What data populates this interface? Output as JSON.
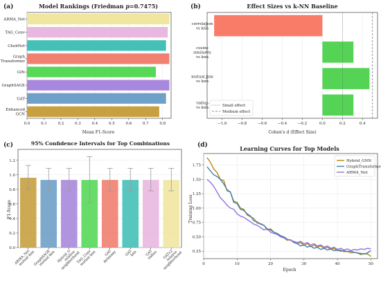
{
  "figure": {
    "panels": [
      {
        "id": "a",
        "label": "(a)",
        "title": "Model Rankings (Friedman p=0.7475)"
      },
      {
        "id": "b",
        "label": "(b)",
        "title": "Effect Sizes vs k-NN Baseline"
      },
      {
        "id": "c",
        "label": "(c)",
        "title": "95% Confidence Intervals for Top Combinations"
      },
      {
        "id": "d",
        "label": "(d)",
        "title": "Learning Curves for Top Models"
      }
    ]
  },
  "chart_data": [
    {
      "id": "a",
      "type": "bar",
      "orientation": "horizontal",
      "title": "Model Rankings (Friedman p=0.7475)",
      "xlabel": "Mean F1-Score",
      "ylabel": "",
      "xlim": [
        0,
        0.85
      ],
      "xticks": [
        0.0,
        0.1,
        0.2,
        0.3,
        0.4,
        0.5,
        0.6,
        0.7,
        0.8
      ],
      "categories": [
        "ARMA_Net",
        "TAG_Conv",
        "ChebNet",
        "Graph\nTransformer",
        "GIN",
        "GraphSAGE",
        "GAT",
        "Enhanced\nGCN"
      ],
      "values": [
        0.84,
        0.83,
        0.82,
        0.84,
        0.76,
        0.84,
        0.82,
        0.78
      ],
      "colors": [
        "#f0e6a0",
        "#e8b8e0",
        "#45c0b8",
        "#f08070",
        "#58d858",
        "#a888dc",
        "#6fa0c8",
        "#c8a040"
      ]
    },
    {
      "id": "b",
      "type": "bar",
      "orientation": "horizontal",
      "title": "Effect Sizes vs k-NN Baseline",
      "xlabel": "Cohen's d (Effect Size)",
      "ylabel": "",
      "xlim": [
        -1.15,
        0.55
      ],
      "xticks": [
        -1.0,
        -0.8,
        -0.6,
        -0.4,
        -0.2,
        0.0,
        0.2,
        0.4
      ],
      "categories": [
        "correlation\nvs knn",
        "cosine\nsimilarity\nvs knn",
        "mutual knn\nvs knn",
        "radius\nvs knn"
      ],
      "values": [
        -1.08,
        0.31,
        0.47,
        0.31
      ],
      "colors": [
        "#f97c68",
        "#55d355",
        "#55d355",
        "#55d355"
      ],
      "reference_lines": [
        {
          "name": "Small effect",
          "x": 0.2,
          "style": "dotted"
        },
        {
          "name": "Medium effect",
          "x": 0.5,
          "style": "dashed"
        }
      ],
      "legend": "lower-left"
    },
    {
      "id": "c",
      "type": "bar",
      "title": "95% Confidence Intervals for Top Combinations",
      "xlabel": "",
      "ylabel": "F1-Score",
      "ylim": [
        0,
        1.35
      ],
      "yticks": [
        0.0,
        0.2,
        0.4,
        0.6,
        0.8,
        1.0,
        1.2
      ],
      "categories": [
        "ARMA_Net\nmutual knn",
        "GraphSAGE\nmutual knn",
        "Hybrid_G\nrelative\nneighborhood",
        "TAG_Conv\nmutual knn",
        "GAT\ndelaunay",
        "GAT\nknn",
        "GAT\nradius",
        "GATv2\nrelative\nneighborhood"
      ],
      "values": [
        0.96,
        0.93,
        0.93,
        0.93,
        0.93,
        0.93,
        0.93,
        0.93
      ],
      "ci_low": [
        0.8,
        0.78,
        0.78,
        0.62,
        0.78,
        0.78,
        0.78,
        0.78
      ],
      "ci_high": [
        1.13,
        1.09,
        1.09,
        1.25,
        1.09,
        1.09,
        1.09,
        1.09
      ],
      "colors": [
        "#c8a040",
        "#6fa0c8",
        "#a888dc",
        "#58d858",
        "#f08070",
        "#45c0b8",
        "#e8b8e0",
        "#f0e6a0"
      ]
    },
    {
      "id": "d",
      "type": "line",
      "title": "Learning Curves for Top Models",
      "xlabel": "Epoch",
      "ylabel": "Training Loss",
      "xlim": [
        0,
        52
      ],
      "ylim": [
        0.12,
        1.95
      ],
      "xticks": [
        0,
        10,
        20,
        30,
        40,
        50
      ],
      "yticks": [
        0.25,
        0.5,
        0.75,
        1.0,
        1.25,
        1.5,
        1.75
      ],
      "x": [
        1,
        2,
        3,
        4,
        5,
        6,
        7,
        8,
        9,
        10,
        11,
        12,
        13,
        14,
        15,
        16,
        17,
        18,
        19,
        20,
        21,
        22,
        23,
        24,
        25,
        26,
        27,
        28,
        29,
        30,
        31,
        32,
        33,
        34,
        35,
        36,
        37,
        38,
        39,
        40,
        41,
        42,
        43,
        44,
        45,
        46,
        47,
        48,
        49,
        50
      ],
      "series": [
        {
          "name": "Hybrid_GNN",
          "color": "#b8860b",
          "values": [
            1.88,
            1.8,
            1.68,
            1.62,
            1.5,
            1.48,
            1.3,
            1.28,
            1.12,
            1.1,
            1.0,
            0.98,
            0.88,
            0.85,
            0.82,
            0.74,
            0.73,
            0.7,
            0.62,
            0.64,
            0.58,
            0.55,
            0.5,
            0.48,
            0.44,
            0.45,
            0.4,
            0.38,
            0.4,
            0.35,
            0.38,
            0.33,
            0.36,
            0.32,
            0.34,
            0.3,
            0.32,
            0.28,
            0.3,
            0.26,
            0.27,
            0.24,
            0.25,
            0.22,
            0.23,
            0.22,
            0.19,
            0.21,
            0.2,
            0.16
          ]
        },
        {
          "name": "GraphTransformer",
          "color": "#3a7fb5",
          "values": [
            1.72,
            1.65,
            1.58,
            1.55,
            1.5,
            1.42,
            1.32,
            1.28,
            1.1,
            1.08,
            0.98,
            0.96,
            0.9,
            0.86,
            0.78,
            0.76,
            0.72,
            0.7,
            0.64,
            0.62,
            0.58,
            0.56,
            0.52,
            0.5,
            0.46,
            0.44,
            0.4,
            0.38,
            0.34,
            0.36,
            0.32,
            0.34,
            0.3,
            0.32,
            0.28,
            0.3,
            0.27,
            0.29,
            0.26,
            0.27,
            0.25,
            0.26,
            0.24,
            0.25,
            0.23,
            0.22,
            0.21,
            0.2,
            0.22,
            0.26
          ]
        },
        {
          "name": "ARMA_Net",
          "color": "#9370db",
          "values": [
            1.5,
            1.45,
            1.38,
            1.28,
            1.18,
            1.12,
            1.05,
            1.0,
            0.98,
            0.9,
            0.86,
            0.84,
            0.8,
            0.76,
            0.72,
            0.7,
            0.66,
            0.62,
            0.64,
            0.58,
            0.56,
            0.54,
            0.5,
            0.48,
            0.46,
            0.44,
            0.42,
            0.4,
            0.42,
            0.38,
            0.4,
            0.36,
            0.38,
            0.34,
            0.36,
            0.32,
            0.34,
            0.3,
            0.32,
            0.28,
            0.3,
            0.27,
            0.29,
            0.26,
            0.28,
            0.27,
            0.29,
            0.28,
            0.3,
            0.29
          ]
        }
      ],
      "legend": "top-right"
    }
  ]
}
